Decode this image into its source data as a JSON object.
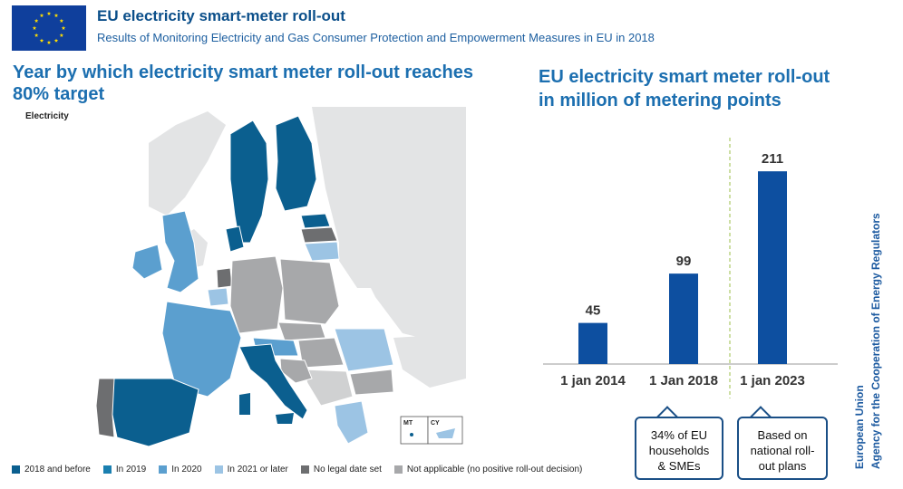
{
  "header": {
    "title": "EU electricity smart-meter roll-out",
    "subtitle": "Results of Monitoring Electricity and Gas Consumer Protection and Empowerment Measures in EU in 2018"
  },
  "map": {
    "title": "Year by which electricity smart meter roll-out reaches 80% target",
    "tag": "Electricity",
    "inset_labels": [
      "MT",
      "CY"
    ],
    "legend": [
      {
        "label": "2018 and before",
        "color": "#0b5f8f"
      },
      {
        "label": "In 2019",
        "color": "#1a7fb0"
      },
      {
        "label": "In 2020",
        "color": "#5b9fcf"
      },
      {
        "label": "In 2021 or later",
        "color": "#9cc4e4"
      },
      {
        "label": "No legal date set",
        "color": "#6d6e70"
      },
      {
        "label": "Not applicable (no positive roll-out decision)",
        "color": "#a7a8aa"
      }
    ]
  },
  "chart_data": {
    "type": "bar",
    "title": "EU electricity smart meter roll-out in million of metering points",
    "categories": [
      "1 jan 2014",
      "1 Jan 2018",
      "1 jan 2023"
    ],
    "values": [
      45,
      99,
      211
    ],
    "ylim": [
      0,
      230
    ],
    "bar_color": "#0d4fa0",
    "annotations": [
      {
        "category": "1 Jan 2018",
        "text_lines": [
          "34% of EU",
          "households",
          "& SMEs"
        ]
      },
      {
        "category": "1 jan 2023",
        "text_lines": [
          "Based on",
          "national roll-",
          "out plans"
        ]
      }
    ],
    "separator": "dashed line between 1 Jan 2018 and 1 jan 2023"
  },
  "side_text": {
    "line1": "European Union",
    "line2": "Agency for the Cooperation of Energy Regulators",
    "color": "#1c5aa0"
  }
}
